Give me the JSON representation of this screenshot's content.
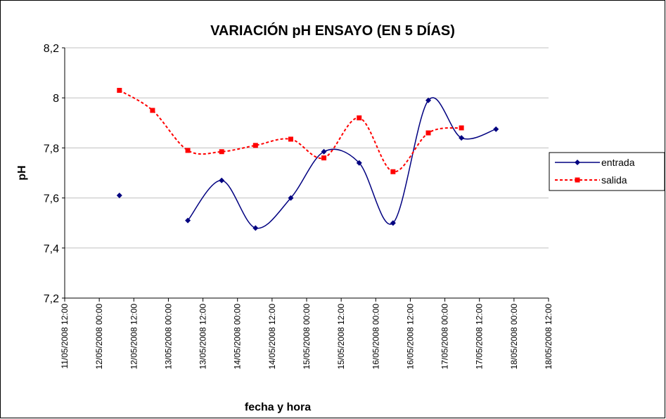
{
  "chart_data": {
    "type": "line",
    "title": "VARIACIÓN pH ENSAYO (EN 5 DÍAS)",
    "x_label": "fecha y hora",
    "y_label": "pH",
    "x": [
      "12/05/2008 07:00",
      "12/05/2008 18:30",
      "13/05/2008 06:45",
      "13/05/2008 18:30",
      "14/05/2008 06:15",
      "14/05/2008 18:30",
      "15/05/2008 06:00",
      "15/05/2008 18:15",
      "16/05/2008 06:00",
      "16/05/2008 18:15",
      "17/05/2008 05:45",
      "17/05/2008 17:45"
    ],
    "series": [
      {
        "name": "entrada",
        "color": "#000080",
        "marker": "diamond",
        "dashed": false,
        "smooth": true,
        "values": [
          7.61,
          null,
          7.51,
          7.67,
          7.48,
          7.6,
          7.785,
          7.74,
          7.5,
          7.99,
          7.84,
          7.875
        ]
      },
      {
        "name": "salida",
        "color": "#ff0000",
        "marker": "square",
        "dashed": true,
        "smooth": true,
        "values": [
          8.03,
          7.95,
          7.79,
          7.785,
          7.81,
          7.835,
          7.76,
          7.92,
          7.705,
          7.86,
          7.88,
          null
        ]
      }
    ],
    "xlim": [
      "11/05/2008 12:00",
      "18/05/2008 12:00"
    ],
    "xticks": [
      "11/05/2008 12:00",
      "12/05/2008 00:00",
      "12/05/2008 12:00",
      "13/05/2008 00:00",
      "13/05/2008 12:00",
      "14/05/2008 00:00",
      "14/05/2008 12:00",
      "15/05/2008 00:00",
      "15/05/2008 12:00",
      "16/05/2008 00:00",
      "16/05/2008 12:00",
      "17/05/2008 00:00",
      "17/05/2008 12:00",
      "18/05/2008 00:00",
      "18/05/2008 12:00"
    ],
    "ylim": [
      7.2,
      8.2
    ],
    "yticks": [
      {
        "value": 7.2,
        "label": "7,2"
      },
      {
        "value": 7.4,
        "label": "7,4"
      },
      {
        "value": 7.6,
        "label": "7,6"
      },
      {
        "value": 7.8,
        "label": "7,8"
      },
      8,
      {
        "value": 8.2,
        "label": "8,2"
      }
    ],
    "grid": true,
    "legend": "right"
  }
}
